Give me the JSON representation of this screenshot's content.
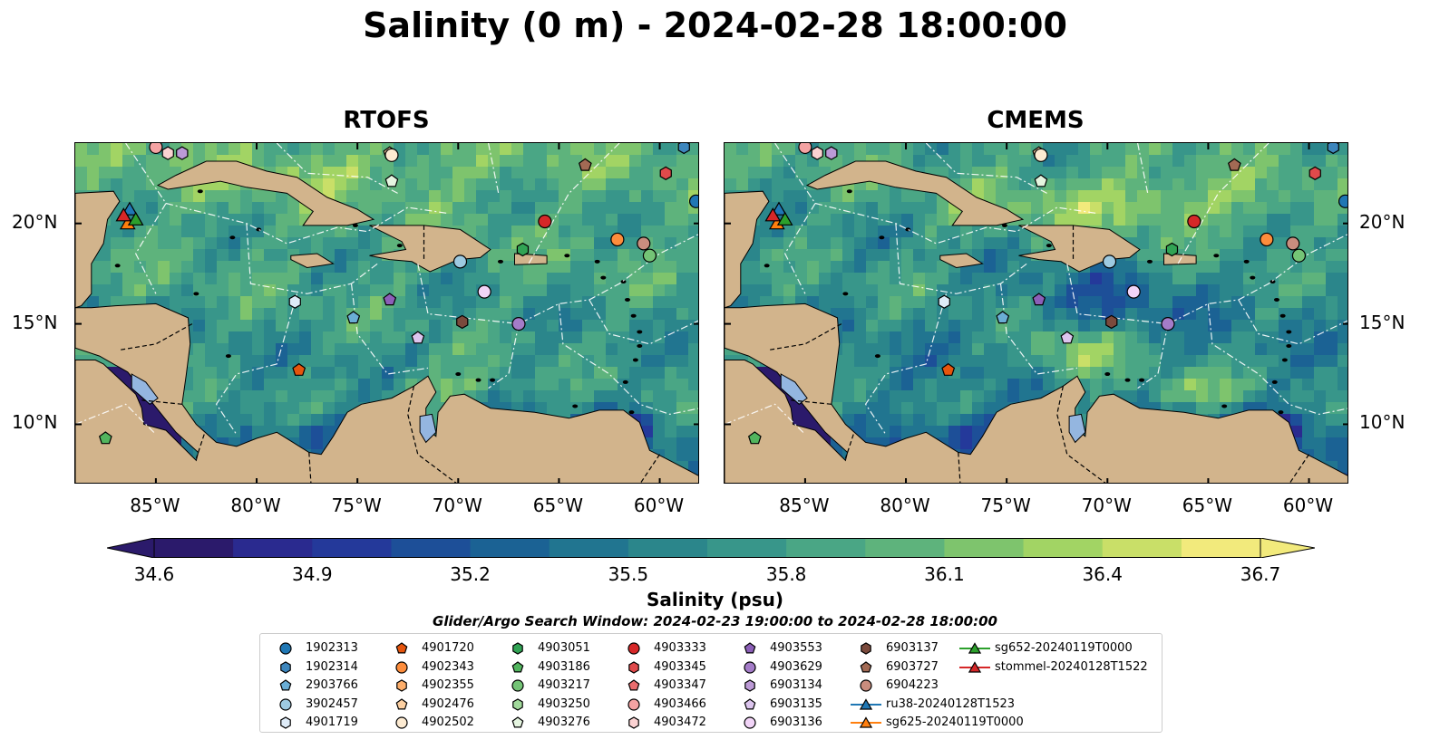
{
  "title": "Salinity (0 m) - 2024-02-28 18:00:00",
  "panels": [
    {
      "title": "RTOFS",
      "mode": "rtofs"
    },
    {
      "title": "CMEMS",
      "mode": "cmems"
    }
  ],
  "extent": {
    "lon": [
      -89,
      -58
    ],
    "lat": [
      7,
      24
    ]
  },
  "lon_ticks": [
    {
      "value": -85,
      "label": "85°W"
    },
    {
      "value": -80,
      "label": "80°W"
    },
    {
      "value": -75,
      "label": "75°W"
    },
    {
      "value": -70,
      "label": "70°W"
    },
    {
      "value": -65,
      "label": "65°W"
    },
    {
      "value": -60,
      "label": "60°W"
    }
  ],
  "lat_ticks": [
    {
      "value": 20,
      "label": "20°N"
    },
    {
      "value": 15,
      "label": "15°N"
    },
    {
      "value": 10,
      "label": "10°N"
    }
  ],
  "colorbar": {
    "label": "Salinity (psu)",
    "vmin": 34.6,
    "vmax": 36.7,
    "ticks": [
      "34.6",
      "34.9",
      "35.2",
      "35.5",
      "35.8",
      "36.1",
      "36.4",
      "36.7"
    ],
    "colors": [
      "#2b1a6b",
      "#2a2a8f",
      "#24399a",
      "#1d4f98",
      "#1b6294",
      "#217590",
      "#2b868b",
      "#38968a",
      "#4aa685",
      "#5eb37c",
      "#7ec46d",
      "#a2d464",
      "#c9df68",
      "#f2ea7c"
    ]
  },
  "search_window": "Glider/Argo Search Window: 2024-02-23 19:00:00 to 2024-02-28 18:00:00",
  "land_color": "#d2b48c",
  "ocean_deep_color": "#2b1a6b",
  "legend": {
    "entries": [
      {
        "label": "1902313",
        "marker": "circle",
        "color": "#1f77b4"
      },
      {
        "label": "1902314",
        "marker": "hexagon",
        "color": "#3d86bd"
      },
      {
        "label": "2903766",
        "marker": "pentagon",
        "color": "#6aaed6"
      },
      {
        "label": "3902457",
        "marker": "circle",
        "color": "#9ecae1"
      },
      {
        "label": "4901719",
        "marker": "hexagon",
        "color": "#deebf7"
      },
      {
        "label": "4901720",
        "marker": "pentagon",
        "color": "#e6550d"
      },
      {
        "label": "4902343",
        "marker": "circle",
        "color": "#fd8d3c"
      },
      {
        "label": "4902355",
        "marker": "hexagon",
        "color": "#fdae6b"
      },
      {
        "label": "4902476",
        "marker": "pentagon",
        "color": "#fdd0a2"
      },
      {
        "label": "4902502",
        "marker": "circle",
        "color": "#fdebd2"
      },
      {
        "label": "4903051",
        "marker": "hexagon",
        "color": "#31a354"
      },
      {
        "label": "4903186",
        "marker": "pentagon",
        "color": "#52b55e"
      },
      {
        "label": "4903217",
        "marker": "circle",
        "color": "#74c476"
      },
      {
        "label": "4903250",
        "marker": "hexagon",
        "color": "#a1d99b"
      },
      {
        "label": "4903276",
        "marker": "pentagon",
        "color": "#e5f5e0"
      },
      {
        "label": "4903333",
        "marker": "circle",
        "color": "#d62728"
      },
      {
        "label": "4903345",
        "marker": "hexagon",
        "color": "#e04a4b"
      },
      {
        "label": "4903347",
        "marker": "pentagon",
        "color": "#ea6d6e"
      },
      {
        "label": "4903466",
        "marker": "circle",
        "color": "#f4a3a3"
      },
      {
        "label": "4903472",
        "marker": "hexagon",
        "color": "#fbd2d2"
      },
      {
        "label": "4903553",
        "marker": "pentagon",
        "color": "#8c5fb8"
      },
      {
        "label": "4903629",
        "marker": "circle",
        "color": "#a47cc8"
      },
      {
        "label": "6903134",
        "marker": "hexagon",
        "color": "#bc9ad6"
      },
      {
        "label": "6903135",
        "marker": "pentagon",
        "color": "#dcc5ee"
      },
      {
        "label": "6903136",
        "marker": "circle",
        "color": "#f1d4f7"
      },
      {
        "label": "6903137",
        "marker": "hexagon",
        "color": "#7b4a3c"
      },
      {
        "label": "6903727",
        "marker": "pentagon",
        "color": "#a26a54"
      },
      {
        "label": "6904223",
        "marker": "circle",
        "color": "#c98d7e"
      },
      {
        "label": "ru38-20240128T1523",
        "marker": "triangle-line",
        "color": "#1f77b4"
      },
      {
        "label": "sg625-20240119T0000",
        "marker": "triangle-line",
        "color": "#ff7f0e"
      },
      {
        "label": "sg652-20240119T0000",
        "marker": "triangle-line",
        "color": "#2ca02c"
      },
      {
        "label": "stommel-20240128T1522",
        "marker": "triangle-line",
        "color": "#d62728"
      }
    ]
  },
  "floats": [
    {
      "id": "1902313",
      "lon": -58.2,
      "lat": 21.1
    },
    {
      "id": "1902314",
      "lon": -58.8,
      "lat": 23.8
    },
    {
      "id": "2903766",
      "lon": -75.2,
      "lat": 15.3
    },
    {
      "id": "3902457",
      "lon": -69.9,
      "lat": 18.1
    },
    {
      "id": "4901719",
      "lon": -78.1,
      "lat": 16.1
    },
    {
      "id": "4901720",
      "lon": -77.9,
      "lat": 12.7
    },
    {
      "id": "4902343",
      "lon": -62.1,
      "lat": 19.2
    },
    {
      "id": "4902476",
      "lon": -73.4,
      "lat": 23.5
    },
    {
      "id": "4902502",
      "lon": -73.3,
      "lat": 23.4
    },
    {
      "id": "4903051",
      "lon": -66.8,
      "lat": 18.7
    },
    {
      "id": "4903186",
      "lon": -87.5,
      "lat": 9.3
    },
    {
      "id": "4903217",
      "lon": -60.5,
      "lat": 18.4
    },
    {
      "id": "4903276",
      "lon": -73.3,
      "lat": 22.1
    },
    {
      "id": "4903333",
      "lon": -65.7,
      "lat": 20.1
    },
    {
      "id": "4903345",
      "lon": -59.7,
      "lat": 22.5
    },
    {
      "id": "4903466",
      "lon": -85.0,
      "lat": 23.8
    },
    {
      "id": "4903472",
      "lon": -84.4,
      "lat": 23.5
    },
    {
      "id": "4903553",
      "lon": -73.4,
      "lat": 16.2
    },
    {
      "id": "4903629",
      "lon": -67.0,
      "lat": 15.0
    },
    {
      "id": "6903134",
      "lon": -83.7,
      "lat": 23.5
    },
    {
      "id": "6903135",
      "lon": -72.0,
      "lat": 14.3
    },
    {
      "id": "6903136",
      "lon": -68.7,
      "lat": 16.6
    },
    {
      "id": "6903137",
      "lon": -69.8,
      "lat": 15.1
    },
    {
      "id": "6903727",
      "lon": -63.7,
      "lat": 22.9
    },
    {
      "id": "6904223",
      "lon": -60.8,
      "lat": 19.0
    }
  ],
  "gliders": [
    {
      "id": "ru38-20240128T1523",
      "lon": -86.3,
      "lat": 20.7
    },
    {
      "id": "sg625-20240119T0000",
      "lon": -86.4,
      "lat": 20.0
    },
    {
      "id": "sg652-20240119T0000",
      "lon": -86.0,
      "lat": 20.2
    },
    {
      "id": "stommel-20240128T1522",
      "lon": -86.6,
      "lat": 20.4
    }
  ]
}
